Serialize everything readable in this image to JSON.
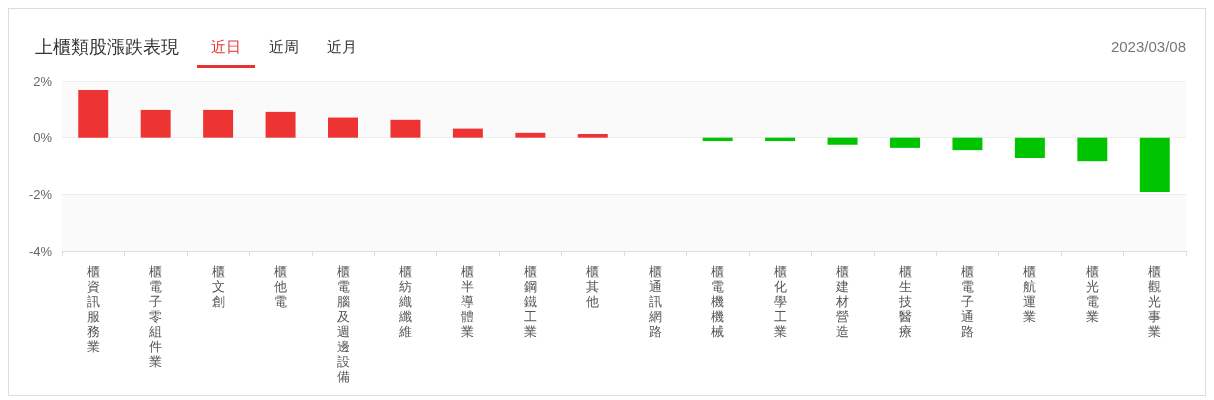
{
  "chart_data": {
    "type": "bar",
    "title": "上櫃類股漲跌表現",
    "subtitle": "2023/03/08",
    "annotations": [
      "近日",
      "近周",
      "近月"
    ],
    "categories": [
      "櫃資訊服務業",
      "櫃電子零組件業",
      "櫃文創",
      "櫃他電",
      "櫃電腦及週邊設備",
      "櫃紡織纖維",
      "櫃半導體業",
      "櫃鋼鐵工業",
      "櫃其他",
      "櫃通訊網路",
      "櫃電機機械",
      "櫃化學工業",
      "櫃建材營造",
      "櫃生技醫療",
      "櫃電子通路",
      "櫃航運業",
      "櫃光電業",
      "櫃觀光事業"
    ],
    "values": [
      1.68,
      0.98,
      0.98,
      0.91,
      0.71,
      0.63,
      0.32,
      0.17,
      0.13,
      0,
      -0.12,
      -0.12,
      -0.25,
      -0.36,
      -0.44,
      -0.72,
      -0.83,
      -1.92
    ],
    "colors": [
      "#ee3333",
      "#ee3333",
      "#ee3333",
      "#ee3333",
      "#ee3333",
      "#ee3333",
      "#ee3333",
      "#ee3333",
      "#ee3333",
      "#ffffff",
      "#00c400",
      "#00c400",
      "#00c400",
      "#00c400",
      "#00c400",
      "#00c400",
      "#00c400",
      "#00c400"
    ],
    "ylim": [
      -4,
      2
    ],
    "yticks": [
      {
        "value": -4,
        "label": "-4%"
      },
      {
        "value": -2,
        "label": "-2%"
      },
      {
        "value": 0,
        "label": "0%"
      },
      {
        "value": 2,
        "label": "2%"
      }
    ],
    "grid": "y"
  }
}
